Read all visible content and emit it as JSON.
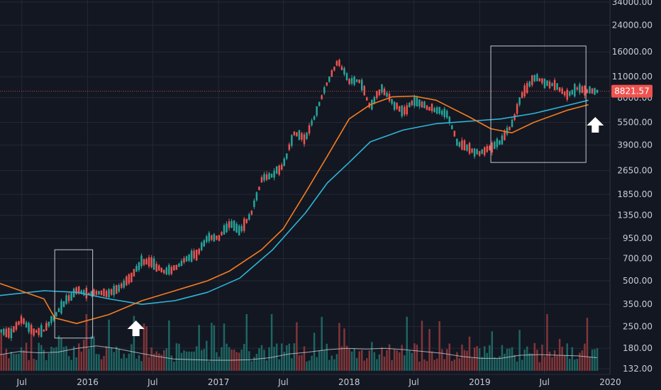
{
  "chart_data": {
    "type": "candlestick",
    "symbol_note": "",
    "y_scale": "log",
    "ylim": [
      132,
      34000
    ],
    "x_range": [
      "2015-05-01",
      "2019-12-31"
    ],
    "y_ticks": [
      "34000.00",
      "24000.00",
      "16000.00",
      "11000.00",
      "8000.00",
      "5500.00",
      "3900.00",
      "2650.00",
      "1850.00",
      "1350.00",
      "950.00",
      "700.00",
      "500.00",
      "350.00",
      "250.00",
      "180.00",
      "132.00"
    ],
    "x_ticks": [
      {
        "label": "Jul",
        "date": "2015-07-01"
      },
      {
        "label": "2016",
        "date": "2016-01-01"
      },
      {
        "label": "Jul",
        "date": "2016-07-01"
      },
      {
        "label": "2017",
        "date": "2017-01-01"
      },
      {
        "label": "Jul",
        "date": "2017-07-01"
      },
      {
        "label": "2018",
        "date": "2018-01-01"
      },
      {
        "label": "Jul",
        "date": "2018-07-01"
      },
      {
        "label": "2019",
        "date": "2019-01-01"
      },
      {
        "label": "Jul",
        "date": "2019-07-01"
      },
      {
        "label": "2020",
        "date": "2020-01-01"
      }
    ],
    "last_price": "8821.57",
    "last_price_value": 8821.57,
    "price_path": [
      [
        "2015-05-01",
        235
      ],
      [
        "2015-06-01",
        225
      ],
      [
        "2015-07-01",
        280
      ],
      [
        "2015-08-01",
        230
      ],
      [
        "2015-09-01",
        235
      ],
      [
        "2015-10-01",
        290
      ],
      [
        "2015-11-01",
        370
      ],
      [
        "2015-12-01",
        430
      ],
      [
        "2016-01-01",
        410
      ],
      [
        "2016-02-01",
        420
      ],
      [
        "2016-03-01",
        415
      ],
      [
        "2016-04-01",
        450
      ],
      [
        "2016-05-01",
        530
      ],
      [
        "2016-06-01",
        680
      ],
      [
        "2016-07-01",
        650
      ],
      [
        "2016-08-01",
        575
      ],
      [
        "2016-09-01",
        605
      ],
      [
        "2016-10-01",
        700
      ],
      [
        "2016-11-01",
        740
      ],
      [
        "2016-12-01",
        960
      ],
      [
        "2017-01-01",
        960
      ],
      [
        "2017-02-01",
        1190
      ],
      [
        "2017-03-01",
        1070
      ],
      [
        "2017-04-01",
        1350
      ],
      [
        "2017-05-01",
        2300
      ],
      [
        "2017-06-01",
        2500
      ],
      [
        "2017-07-01",
        2850
      ],
      [
        "2017-08-01",
        4700
      ],
      [
        "2017-09-01",
        4300
      ],
      [
        "2017-10-01",
        6400
      ],
      [
        "2017-11-01",
        10000
      ],
      [
        "2017-12-01",
        14000
      ],
      [
        "2018-01-01",
        10200
      ],
      [
        "2018-02-01",
        10300
      ],
      [
        "2018-03-01",
        6900
      ],
      [
        "2018-04-01",
        9200
      ],
      [
        "2018-05-01",
        7500
      ],
      [
        "2018-06-01",
        6400
      ],
      [
        "2018-07-01",
        7700
      ],
      [
        "2018-08-01",
        7000
      ],
      [
        "2018-09-01",
        6600
      ],
      [
        "2018-10-01",
        6300
      ],
      [
        "2018-11-01",
        4000
      ],
      [
        "2018-12-01",
        3700
      ],
      [
        "2019-01-01",
        3450
      ],
      [
        "2019-02-01",
        3800
      ],
      [
        "2019-03-01",
        4100
      ],
      [
        "2019-04-01",
        5300
      ],
      [
        "2019-05-01",
        8500
      ],
      [
        "2019-06-01",
        10800
      ],
      [
        "2019-07-01",
        10100
      ],
      [
        "2019-08-01",
        9600
      ],
      [
        "2019-09-01",
        8300
      ],
      [
        "2019-10-01",
        9200
      ],
      [
        "2019-11-01",
        8821
      ]
    ],
    "ma_orange": [
      [
        "2015-05-01",
        480
      ],
      [
        "2015-09-01",
        380
      ],
      [
        "2015-10-01",
        285
      ],
      [
        "2015-12-01",
        262
      ],
      [
        "2016-03-01",
        300
      ],
      [
        "2016-06-01",
        370
      ],
      [
        "2016-09-01",
        430
      ],
      [
        "2016-12-01",
        500
      ],
      [
        "2017-02-01",
        580
      ],
      [
        "2017-05-01",
        800
      ],
      [
        "2017-07-01",
        1100
      ],
      [
        "2017-09-01",
        1900
      ],
      [
        "2017-11-01",
        3300
      ],
      [
        "2018-01-01",
        5800
      ],
      [
        "2018-03-01",
        7200
      ],
      [
        "2018-05-01",
        8100
      ],
      [
        "2018-07-01",
        8200
      ],
      [
        "2018-09-01",
        7700
      ],
      [
        "2018-12-01",
        6000
      ],
      [
        "2019-02-01",
        5000
      ],
      [
        "2019-04-01",
        4700
      ],
      [
        "2019-06-01",
        5500
      ],
      [
        "2019-09-01",
        6600
      ],
      [
        "2019-11-01",
        7200
      ]
    ],
    "ma_cyan": [
      [
        "2015-05-01",
        400
      ],
      [
        "2015-09-01",
        430
      ],
      [
        "2015-12-01",
        420
      ],
      [
        "2016-03-01",
        380
      ],
      [
        "2016-06-01",
        350
      ],
      [
        "2016-09-01",
        370
      ],
      [
        "2016-12-01",
        420
      ],
      [
        "2017-03-01",
        520
      ],
      [
        "2017-06-01",
        800
      ],
      [
        "2017-09-01",
        1400
      ],
      [
        "2017-11-01",
        2200
      ],
      [
        "2018-01-01",
        3000
      ],
      [
        "2018-03-01",
        4100
      ],
      [
        "2018-06-01",
        4900
      ],
      [
        "2018-09-01",
        5400
      ],
      [
        "2018-12-01",
        5600
      ],
      [
        "2019-03-01",
        5800
      ],
      [
        "2019-06-01",
        6300
      ],
      [
        "2019-09-01",
        7100
      ],
      [
        "2019-11-01",
        7700
      ]
    ],
    "volume_ma": [
      0.52,
      0.62,
      0.58,
      0.6,
      0.72,
      0.8,
      0.72,
      0.6,
      0.48,
      0.38,
      0.36,
      0.34,
      0.34,
      0.36,
      0.42,
      0.54,
      0.6,
      0.68,
      0.72,
      0.7,
      0.72,
      0.68,
      0.62,
      0.56,
      0.46,
      0.4,
      0.4,
      0.5,
      0.52,
      0.5,
      0.48,
      0.42
    ],
    "annotation_boxes": [
      {
        "start": "2015-10-01",
        "end": "2016-01-15",
        "top": 800,
        "bottom": 210
      },
      {
        "start": "2019-02-01",
        "end": "2019-10-25",
        "top": 17500,
        "bottom": 3000
      }
    ],
    "up_arrows": [
      {
        "date": "2016-05-15"
      },
      {
        "date": "2019-11-20"
      }
    ],
    "colors": {
      "background": "#131722",
      "up": "#26a69a",
      "down": "#ef5350",
      "ma_orange": "#f57c1f",
      "ma_cyan": "#2fb4d6",
      "volume_ma": "#c9ccd4",
      "grid": "#232836",
      "box": "#c4c7cf",
      "price_tag": "#ef5350"
    }
  }
}
